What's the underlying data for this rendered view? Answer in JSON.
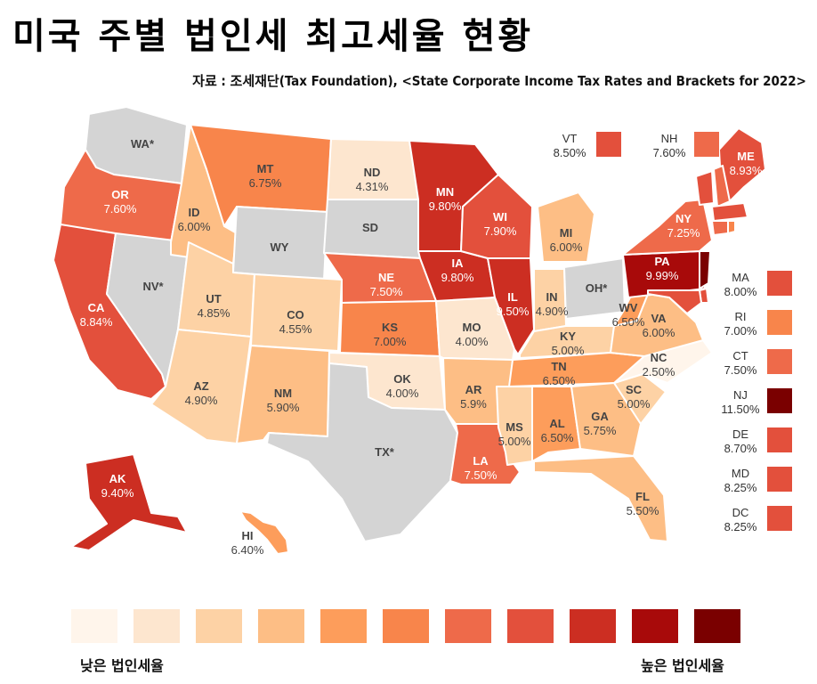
{
  "title": "미국 주별 법인세 최고세율 현황",
  "source": "자료 : 조세재단(Tax Foundation), <State Corporate Income Tax Rates and Brackets for 2022>",
  "colors": {
    "scale": [
      "#fff5eb",
      "#fde6cf",
      "#fdd2a5",
      "#fdbe85",
      "#fd9d5b",
      "#f8854b",
      "#ee6a4a",
      "#e3503c",
      "#cc2e22",
      "#a80a0a",
      "#7a0000"
    ],
    "gray": "#d4d4d4"
  },
  "states": [
    {
      "code": "WA*",
      "rate": ""
    },
    {
      "code": "OR",
      "rate": "7.60%"
    },
    {
      "code": "CA",
      "rate": "8.84%"
    },
    {
      "code": "NV*",
      "rate": ""
    },
    {
      "code": "ID",
      "rate": "6.00%"
    },
    {
      "code": "MT",
      "rate": "6.75%"
    },
    {
      "code": "WY",
      "rate": ""
    },
    {
      "code": "UT",
      "rate": "4.85%"
    },
    {
      "code": "AZ",
      "rate": "4.90%"
    },
    {
      "code": "CO",
      "rate": "4.55%"
    },
    {
      "code": "NM",
      "rate": "5.90%"
    },
    {
      "code": "ND",
      "rate": "4.31%"
    },
    {
      "code": "SD",
      "rate": ""
    },
    {
      "code": "NE",
      "rate": "7.50%"
    },
    {
      "code": "KS",
      "rate": "7.00%"
    },
    {
      "code": "OK",
      "rate": "4.00%"
    },
    {
      "code": "TX*",
      "rate": ""
    },
    {
      "code": "MN",
      "rate": "9.80%"
    },
    {
      "code": "IA",
      "rate": "9.80%"
    },
    {
      "code": "MO",
      "rate": "4.00%"
    },
    {
      "code": "AR",
      "rate": "5.9%"
    },
    {
      "code": "LA",
      "rate": "7.50%"
    },
    {
      "code": "WI",
      "rate": "7.90%"
    },
    {
      "code": "IL",
      "rate": "9.50%"
    },
    {
      "code": "MI",
      "rate": "6.00%"
    },
    {
      "code": "IN",
      "rate": "4.90%"
    },
    {
      "code": "OH*",
      "rate": ""
    },
    {
      "code": "KY",
      "rate": "5.00%"
    },
    {
      "code": "TN",
      "rate": "6.50%"
    },
    {
      "code": "MS",
      "rate": "5.00%"
    },
    {
      "code": "AL",
      "rate": "6.50%"
    },
    {
      "code": "GA",
      "rate": "5.75%"
    },
    {
      "code": "FL",
      "rate": "5.50%"
    },
    {
      "code": "SC",
      "rate": "5.00%"
    },
    {
      "code": "NC",
      "rate": "2.50%"
    },
    {
      "code": "VA",
      "rate": "6.00%"
    },
    {
      "code": "WV",
      "rate": "6.50%"
    },
    {
      "code": "PA",
      "rate": "9.99%"
    },
    {
      "code": "NY",
      "rate": "7.25%"
    },
    {
      "code": "ME",
      "rate": "8.93%"
    },
    {
      "code": "AK",
      "rate": "9.40%"
    },
    {
      "code": "HI",
      "rate": "6.40%"
    }
  ],
  "side_states": [
    {
      "code": "VT",
      "rate": "8.50%"
    },
    {
      "code": "NH",
      "rate": "7.60%"
    },
    {
      "code": "MA",
      "rate": "8.00%"
    },
    {
      "code": "RI",
      "rate": "7.00%"
    },
    {
      "code": "CT",
      "rate": "7.50%"
    },
    {
      "code": "NJ",
      "rate": "11.50%"
    },
    {
      "code": "DE",
      "rate": "8.70%"
    },
    {
      "code": "MD",
      "rate": "8.25%"
    },
    {
      "code": "DC",
      "rate": "8.25%"
    }
  ],
  "legend": {
    "low_label": "낮은 법인세율",
    "high_label": "높은 법인세율"
  }
}
